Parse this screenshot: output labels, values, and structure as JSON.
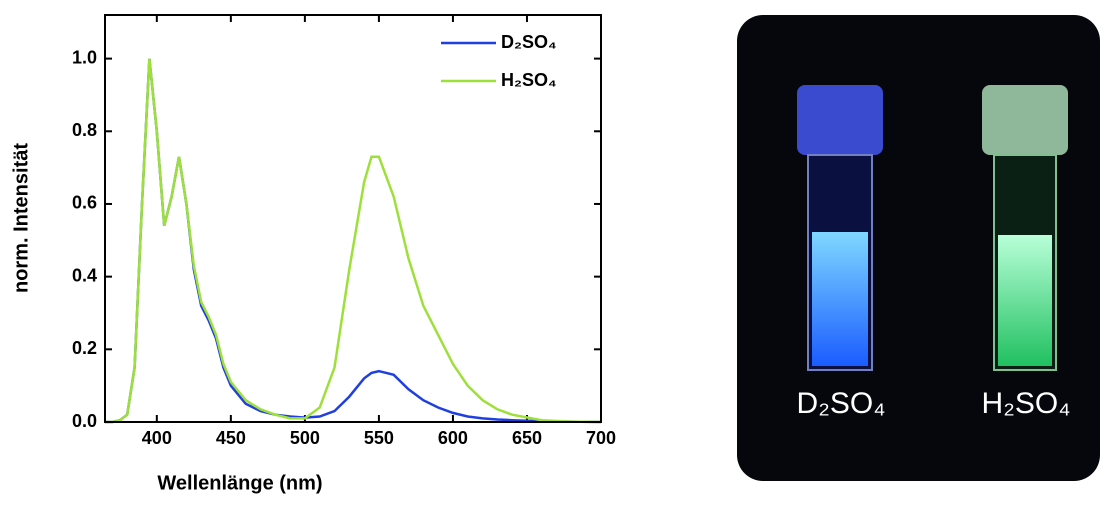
{
  "chart_data": {
    "type": "line",
    "x_label": "Wellenlänge (nm)",
    "y_label": "norm. Intensität",
    "x": [
      365,
      370,
      375,
      380,
      385,
      390,
      395,
      400,
      405,
      410,
      415,
      420,
      425,
      430,
      435,
      440,
      445,
      450,
      460,
      470,
      480,
      490,
      500,
      510,
      520,
      530,
      540,
      545,
      550,
      560,
      570,
      580,
      590,
      600,
      610,
      620,
      630,
      640,
      660,
      680,
      700
    ],
    "series": [
      {
        "name": "D₂SO₄",
        "color": "#1f3fe0",
        "values": [
          0,
          0,
          0.005,
          0.02,
          0.15,
          0.6,
          1.0,
          0.8,
          0.54,
          0.62,
          0.73,
          0.6,
          0.42,
          0.32,
          0.28,
          0.23,
          0.15,
          0.1,
          0.05,
          0.03,
          0.02,
          0.015,
          0.012,
          0.015,
          0.03,
          0.07,
          0.12,
          0.135,
          0.14,
          0.13,
          0.09,
          0.06,
          0.04,
          0.025,
          0.015,
          0.01,
          0.007,
          0.005,
          0.002,
          0.001,
          0
        ]
      },
      {
        "name": "H₂SO₄",
        "color": "#9ee03a",
        "values": [
          0,
          0,
          0.005,
          0.02,
          0.15,
          0.6,
          1.0,
          0.8,
          0.54,
          0.62,
          0.73,
          0.6,
          0.43,
          0.33,
          0.29,
          0.24,
          0.16,
          0.11,
          0.06,
          0.035,
          0.02,
          0.01,
          0.01,
          0.04,
          0.15,
          0.42,
          0.66,
          0.73,
          0.73,
          0.62,
          0.45,
          0.32,
          0.24,
          0.16,
          0.1,
          0.06,
          0.035,
          0.02,
          0.005,
          0.001,
          0
        ]
      }
    ],
    "xlim": [
      365,
      700
    ],
    "xticks": [
      400,
      450,
      500,
      550,
      600,
      650,
      700
    ],
    "ylim": [
      0,
      1.12
    ],
    "yticks": [
      {
        "value": 0,
        "label": "0.0"
      },
      0.2,
      0.4,
      0.6,
      0.8,
      {
        "value": 1,
        "label": "1.0"
      }
    ],
    "legend": "upper right"
  },
  "photo": {
    "labels": [
      "D₂SO₄",
      "H₂SO₄"
    ]
  }
}
